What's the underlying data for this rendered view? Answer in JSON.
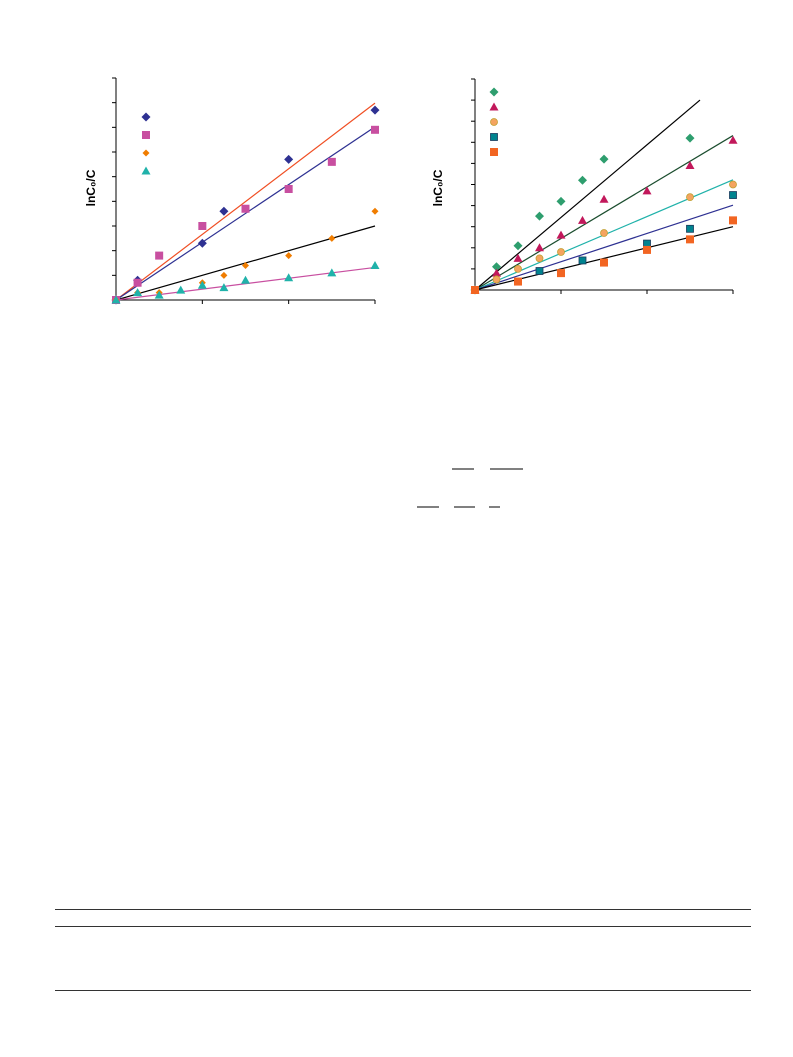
{
  "chart_data": [
    {
      "type": "scatter",
      "ylabel": "lnC₀/C",
      "xlabel": "",
      "xlim": [
        0,
        6
      ],
      "ylim": [
        0,
        0.9
      ],
      "series": [
        {
          "color": "#2E3192",
          "marker": "diamond",
          "x": [
            0,
            0.5,
            2,
            2.5,
            4,
            6
          ],
          "y": [
            0,
            0.08,
            0.23,
            0.36,
            0.57,
            0.77
          ]
        },
        {
          "color": "#C84FA0",
          "marker": "square",
          "x": [
            0,
            0.5,
            1,
            2,
            3,
            4,
            5,
            6
          ],
          "y": [
            0,
            0.07,
            0.18,
            0.3,
            0.37,
            0.45,
            0.56,
            0.69
          ]
        },
        {
          "color": "#F07D00",
          "marker": "diamond-small",
          "x": [
            0,
            0.5,
            1,
            2,
            2.5,
            3,
            4,
            5,
            6
          ],
          "y": [
            0,
            0.03,
            0.03,
            0.07,
            0.1,
            0.14,
            0.18,
            0.25,
            0.36
          ]
        },
        {
          "color": "#20B2AA",
          "marker": "triangle",
          "x": [
            0,
            0.5,
            1,
            1.5,
            2,
            2.5,
            3,
            4,
            5,
            6
          ],
          "y": [
            0,
            0.03,
            0.02,
            0.04,
            0.06,
            0.05,
            0.08,
            0.09,
            0.11,
            0.14
          ]
        }
      ],
      "fits": [
        {
          "color": "#F04E23",
          "slope": 0.133
        },
        {
          "color": "#2E3192",
          "slope": 0.117
        },
        {
          "color": "#000000",
          "slope": 0.05
        },
        {
          "color": "#C84FA0",
          "slope": 0.022
        }
      ],
      "yticks": 9,
      "xticks": 3
    },
    {
      "type": "scatter",
      "ylabel": "lnC₀/C",
      "xlabel": "",
      "xlim": [
        0,
        6
      ],
      "ylim": [
        0,
        1
      ],
      "series": [
        {
          "color": "#2E9E6E",
          "marker": "diamond",
          "x": [
            0,
            0.5,
            1,
            1.5,
            2,
            2.5,
            3,
            5
          ],
          "y": [
            0,
            0.11,
            0.21,
            0.35,
            0.42,
            0.52,
            0.62,
            0.72
          ]
        },
        {
          "color": "#C2185B",
          "marker": "triangle",
          "x": [
            0,
            0.5,
            1,
            1.5,
            2,
            2.5,
            3,
            4,
            5,
            6
          ],
          "y": [
            0,
            0.08,
            0.15,
            0.2,
            0.26,
            0.33,
            0.43,
            0.47,
            0.59,
            0.71
          ]
        },
        {
          "color": "#F4A460",
          "marker": "circle",
          "x": [
            0,
            0.5,
            1,
            1.5,
            2,
            3,
            5,
            6
          ],
          "y": [
            0,
            0.05,
            0.1,
            0.15,
            0.18,
            0.27,
            0.44,
            0.5
          ]
        },
        {
          "color": "#00838F",
          "marker": "square-small",
          "x": [
            0,
            1.5,
            2.5,
            4,
            5,
            6
          ],
          "y": [
            0,
            0.09,
            0.14,
            0.22,
            0.29,
            0.45
          ]
        },
        {
          "color": "#F26522",
          "marker": "square",
          "x": [
            0,
            1,
            2,
            3,
            4,
            5,
            6
          ],
          "y": [
            0,
            0.04,
            0.08,
            0.13,
            0.19,
            0.24,
            0.33
          ]
        }
      ],
      "fits": [
        {
          "color": "#000000",
          "slope": 0.172
        },
        {
          "color": "#1B4D2E",
          "slope": 0.122
        },
        {
          "color": "#20B2AA",
          "slope": 0.087
        },
        {
          "color": "#2E3192",
          "slope": 0.067
        },
        {
          "color": "#000000",
          "slope": 0.05
        }
      ],
      "yticks": 10,
      "xticks": 3
    }
  ]
}
